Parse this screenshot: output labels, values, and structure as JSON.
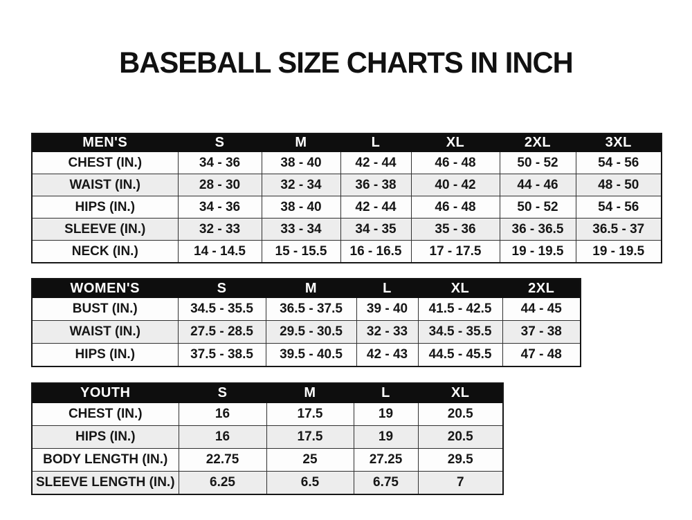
{
  "page": {
    "title": "BASEBALL SIZE CHARTS IN INCH"
  },
  "colors": {
    "header_bg": "#0e0e0e",
    "header_text": "#ffffff",
    "row_alt_bg": "#ededed",
    "border": "#2f2f2f",
    "text": "#161616",
    "background": "#ffffff"
  },
  "tables": [
    {
      "id": "mens",
      "header": [
        "MEN'S",
        "S",
        "M",
        "L",
        "XL",
        "2XL",
        "3XL"
      ],
      "rows": [
        {
          "label": "CHEST (IN.)",
          "values": [
            "34 - 36",
            "38 - 40",
            "42 - 44",
            "46 - 48",
            "50 - 52",
            "54 - 56"
          ]
        },
        {
          "label": "WAIST (IN.)",
          "values": [
            "28 - 30",
            "32 - 34",
            "36 - 38",
            "40 - 42",
            "44 - 46",
            "48 - 50"
          ]
        },
        {
          "label": "HIPS (IN.)",
          "values": [
            "34 - 36",
            "38 - 40",
            "42 - 44",
            "46 - 48",
            "50 - 52",
            "54 - 56"
          ]
        },
        {
          "label": "SLEEVE (IN.)",
          "values": [
            "32 - 33",
            "33 - 34",
            "34 - 35",
            "35 - 36",
            "36 - 36.5",
            "36.5 - 37"
          ]
        },
        {
          "label": "NECK (IN.)",
          "values": [
            "14 - 14.5",
            "15 - 15.5",
            "16 - 16.5",
            "17 - 17.5",
            "19 - 19.5",
            "19 - 19.5"
          ]
        }
      ]
    },
    {
      "id": "womens",
      "header": [
        "WOMEN'S",
        "S",
        "M",
        "L",
        "XL",
        "2XL"
      ],
      "rows": [
        {
          "label": "BUST (IN.)",
          "values": [
            "34.5 - 35.5",
            "36.5 - 37.5",
            "39 - 40",
            "41.5 - 42.5",
            "44 - 45"
          ]
        },
        {
          "label": "WAIST (IN.)",
          "values": [
            "27.5 - 28.5",
            "29.5 - 30.5",
            "32 - 33",
            "34.5 - 35.5",
            "37 - 38"
          ]
        },
        {
          "label": "HIPS (IN.)",
          "values": [
            "37.5 - 38.5",
            "39.5 - 40.5",
            "42 - 43",
            "44.5 - 45.5",
            "47 - 48"
          ]
        }
      ]
    },
    {
      "id": "youth",
      "header": [
        "YOUTH",
        "S",
        "M",
        "L",
        "XL"
      ],
      "rows": [
        {
          "label": "CHEST (IN.)",
          "values": [
            "16",
            "17.5",
            "19",
            "20.5"
          ]
        },
        {
          "label": "HIPS (IN.)",
          "values": [
            "16",
            "17.5",
            "19",
            "20.5"
          ]
        },
        {
          "label": "BODY LENGTH (IN.)",
          "values": [
            "22.75",
            "25",
            "27.25",
            "29.5"
          ]
        },
        {
          "label": "SLEEVE LENGTH (IN.)",
          "values": [
            "6.25",
            "6.5",
            "6.75",
            "7"
          ]
        }
      ]
    }
  ]
}
